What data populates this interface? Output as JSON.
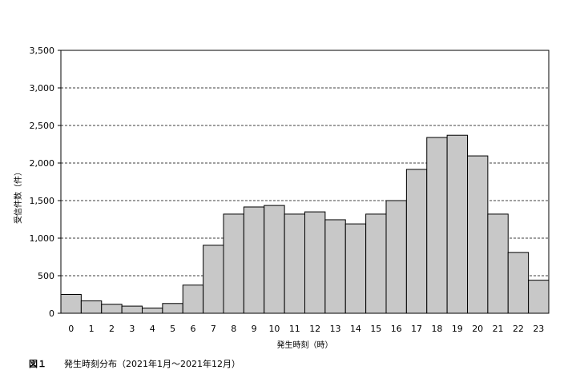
{
  "chart_data": {
    "type": "bar",
    "categories": [
      "0",
      "1",
      "2",
      "3",
      "4",
      "5",
      "6",
      "7",
      "8",
      "9",
      "10",
      "11",
      "12",
      "13",
      "14",
      "15",
      "16",
      "17",
      "18",
      "19",
      "20",
      "21",
      "22",
      "23"
    ],
    "values": [
      250,
      165,
      120,
      95,
      70,
      130,
      375,
      905,
      1320,
      1415,
      1435,
      1320,
      1350,
      1245,
      1190,
      1320,
      1500,
      1915,
      2340,
      2370,
      2095,
      1320,
      810,
      440
    ],
    "xlabel": "発生時刻（時）",
    "ylabel": "受信件数（件）",
    "ylim": [
      0,
      3500
    ],
    "yticks": [
      0,
      500,
      1000,
      1500,
      2000,
      2500,
      3000,
      3500
    ],
    "ytick_labels": [
      "0",
      "500",
      "1,000",
      "1,500",
      "2,000",
      "2,500",
      "3,000",
      "3,500"
    ],
    "grid": "horizontal dashed",
    "legend": "none"
  },
  "caption": {
    "figure_number": "図１",
    "text": "発生時刻分布（2021年1月～2021年12月）"
  },
  "colors": {
    "bar_fill": "#c8c8c8",
    "bar_edge": "#000000",
    "grid": "#000000"
  }
}
